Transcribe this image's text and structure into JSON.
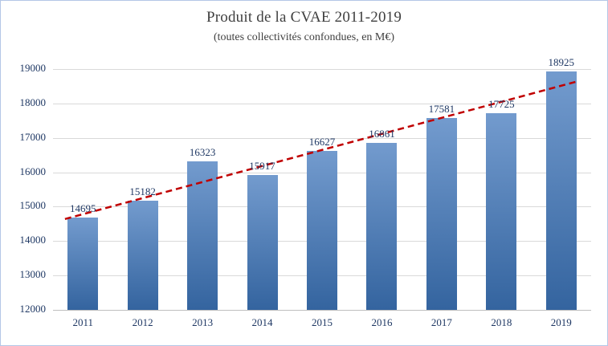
{
  "chart_data": {
    "type": "bar",
    "title": "Produit de la CVAE 2011-2019",
    "subtitle": "(toutes collectivités confondues, en M€)",
    "categories": [
      "2011",
      "2012",
      "2013",
      "2014",
      "2015",
      "2016",
      "2017",
      "2018",
      "2019"
    ],
    "values": [
      14695,
      15182,
      16323,
      15917,
      16627,
      16861,
      17581,
      17725,
      18925
    ],
    "xlabel": "",
    "ylabel": "",
    "ylim": [
      12000,
      19000
    ],
    "ytick_step": 1000,
    "yticks": [
      12000,
      13000,
      14000,
      15000,
      16000,
      17000,
      18000,
      19000
    ],
    "grid": true,
    "legend": false,
    "trendline": true,
    "colors": {
      "bar_top": "#739bce",
      "bar_bottom": "#34649f",
      "label": "#1f3864",
      "title": "#3f3f3f",
      "grid": "#d9d9d9",
      "trendline": "#c00000",
      "border": "#b4c7e7"
    }
  }
}
